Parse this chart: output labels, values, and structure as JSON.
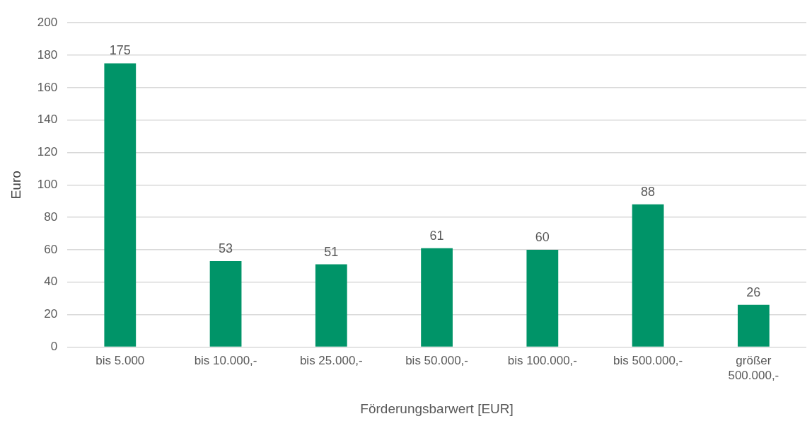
{
  "chart_data": {
    "type": "bar",
    "xlabel": "Förderungsbarwert [EUR]",
    "ylabel": "Euro",
    "categories": [
      "bis 5.000",
      "bis 10.000,-",
      "bis 25.000,-",
      "bis 50.000,-",
      "bis 100.000,-",
      "bis 500.000,-",
      "größer 500.000,-"
    ],
    "values": [
      175,
      53,
      51,
      61,
      60,
      88,
      26
    ],
    "color": "#009468",
    "ylim": [
      0,
      200
    ],
    "yticks": [
      0,
      20,
      40,
      60,
      80,
      100,
      120,
      140,
      160,
      180,
      200
    ],
    "grid": "y",
    "data_labels": true,
    "legend": false
  }
}
